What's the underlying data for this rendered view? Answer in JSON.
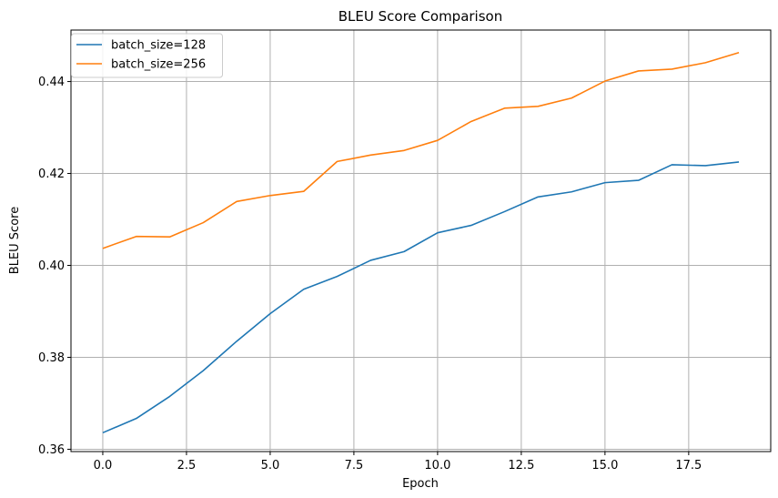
{
  "chart_data": {
    "type": "line",
    "title": "BLEU Score Comparison",
    "xlabel": "Epoch",
    "ylabel": "BLEU Score",
    "xlim": [
      -0.95,
      19.95
    ],
    "ylim": [
      0.3595,
      0.4512
    ],
    "x": [
      0,
      1,
      2,
      3,
      4,
      5,
      6,
      7,
      8,
      9,
      10,
      11,
      12,
      13,
      14,
      15,
      16,
      17,
      18,
      19
    ],
    "xticks": [
      0.0,
      2.5,
      5.0,
      7.5,
      10.0,
      12.5,
      15.0,
      17.5
    ],
    "xtick_labels": [
      "0.0",
      "2.5",
      "5.0",
      "7.5",
      "10.0",
      "12.5",
      "15.0",
      "17.5"
    ],
    "yticks": [
      0.36,
      0.38,
      0.4,
      0.42,
      0.44
    ],
    "ytick_labels": [
      "0.36",
      "0.38",
      "0.40",
      "0.42",
      "0.44"
    ],
    "grid": true,
    "legend_position": "top-left",
    "series": [
      {
        "name": "batch_size=128",
        "color": "#1f77b4",
        "values": [
          0.3636,
          0.3667,
          0.3715,
          0.3771,
          0.3835,
          0.3895,
          0.3948,
          0.3976,
          0.4011,
          0.403,
          0.4071,
          0.4087,
          0.4117,
          0.4149,
          0.416,
          0.418,
          0.4185,
          0.4219,
          0.4217,
          0.4225
        ]
      },
      {
        "name": "batch_size=256",
        "color": "#ff7f0e",
        "values": [
          0.4037,
          0.4063,
          0.4062,
          0.4093,
          0.4139,
          0.4152,
          0.4161,
          0.4226,
          0.424,
          0.425,
          0.4272,
          0.4313,
          0.4342,
          0.4346,
          0.4364,
          0.4401,
          0.4423,
          0.4427,
          0.4441,
          0.4463
        ]
      }
    ]
  }
}
